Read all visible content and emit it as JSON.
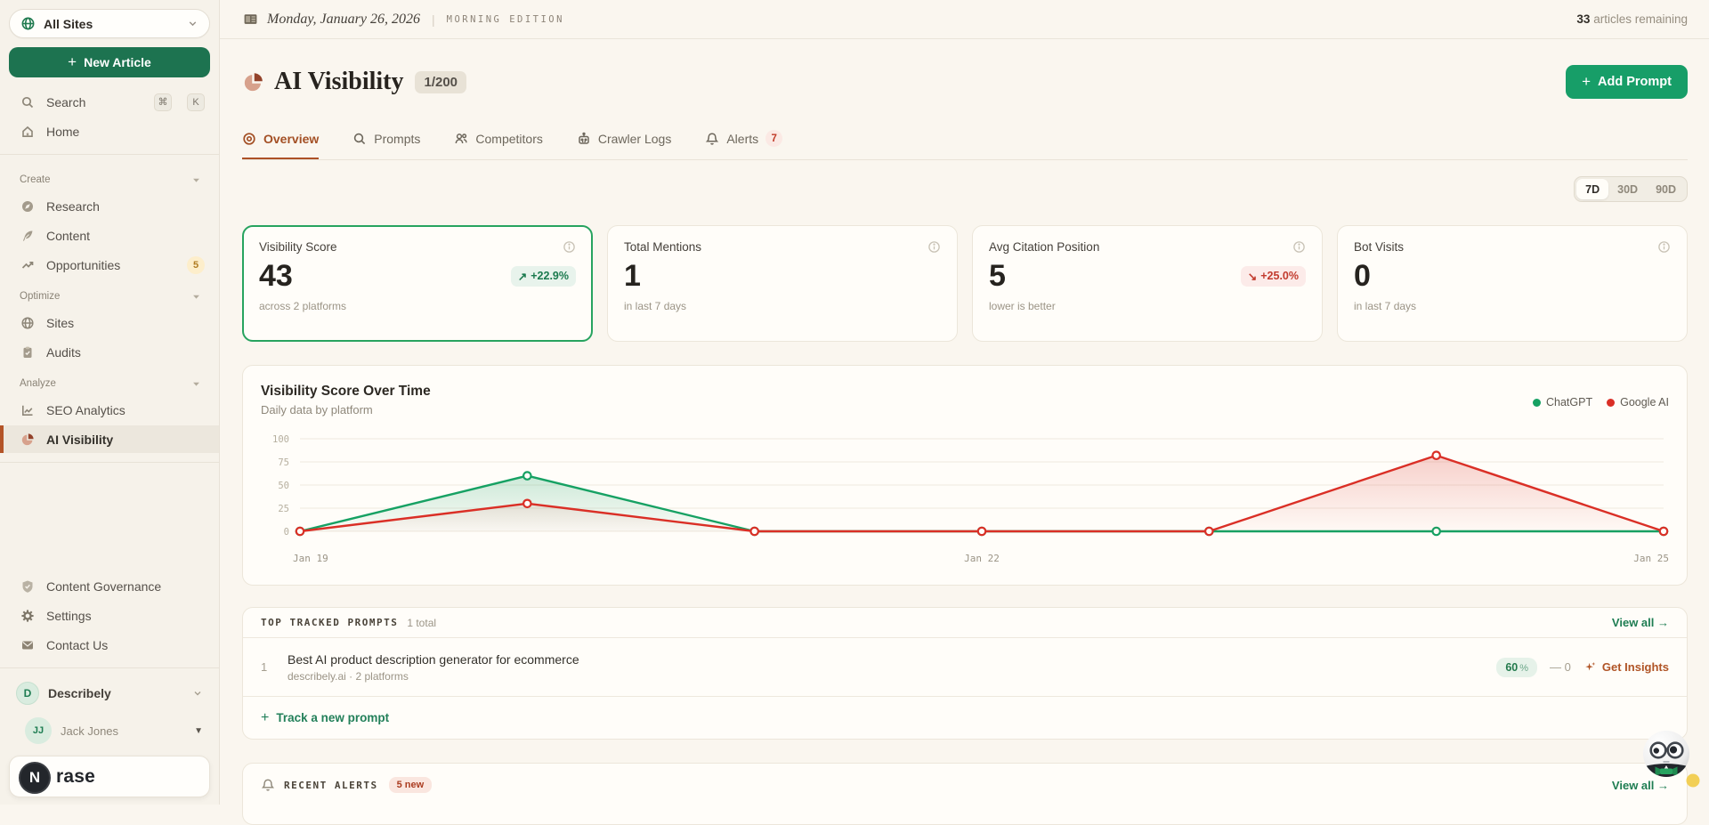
{
  "sidebar": {
    "site_selector": {
      "label": "All Sites"
    },
    "new_article_label": "New Article",
    "search": {
      "label": "Search",
      "shortcut_keys": [
        "⌘",
        "K"
      ]
    },
    "home_label": "Home",
    "sections": [
      {
        "label": "Create",
        "items": [
          {
            "label": "Research"
          },
          {
            "label": "Content"
          },
          {
            "label": "Opportunities",
            "badge": "5"
          }
        ]
      },
      {
        "label": "Optimize",
        "items": [
          {
            "label": "Sites"
          },
          {
            "label": "Audits"
          }
        ]
      },
      {
        "label": "Analyze",
        "items": [
          {
            "label": "SEO Analytics"
          },
          {
            "label": "AI Visibility"
          }
        ]
      }
    ],
    "footer_items": [
      {
        "label": "Content Governance"
      },
      {
        "label": "Settings"
      },
      {
        "label": "Contact Us"
      }
    ],
    "workspace": {
      "initial": "D",
      "name": "Describely"
    },
    "user": {
      "initials": "JJ",
      "name": "Jack Jones"
    },
    "brand": {
      "initial": "N",
      "text": "rase"
    }
  },
  "topbar": {
    "date": "Monday, January 26, 2026",
    "edition": "MORNING EDITION",
    "articles_count": "33",
    "articles_label": "articles remaining"
  },
  "header": {
    "title": "AI Visibility",
    "quota": "1/200",
    "add_prompt_label": "Add Prompt"
  },
  "tabs": [
    {
      "label": "Overview"
    },
    {
      "label": "Prompts"
    },
    {
      "label": "Competitors"
    },
    {
      "label": "Crawler Logs"
    },
    {
      "label": "Alerts",
      "badge": "7"
    }
  ],
  "time_range": {
    "options": [
      "7D",
      "30D",
      "90D"
    ],
    "selected": "7D"
  },
  "stat_cards": [
    {
      "label": "Visibility Score",
      "value": "43",
      "delta_arrow": "↗",
      "delta": "+22.9%",
      "subtext": "across 2 platforms"
    },
    {
      "label": "Total Mentions",
      "value": "1",
      "subtext": "in last 7 days"
    },
    {
      "label": "Avg Citation Position",
      "value": "5",
      "delta_arrow": "↘",
      "delta": "+25.0%",
      "subtext": "lower is better"
    },
    {
      "label": "Bot Visits",
      "value": "0",
      "subtext": "in last 7 days"
    }
  ],
  "chart_data": {
    "type": "line",
    "title": "Visibility Score Over Time",
    "subtitle": "Daily data by platform",
    "x": [
      "Jan 19",
      "Jan 20",
      "Jan 21",
      "Jan 22",
      "Jan 23",
      "Jan 24",
      "Jan 25"
    ],
    "x_tick_labels": [
      "Jan 19",
      "Jan 22",
      "Jan 25"
    ],
    "yticks": [
      0,
      25,
      50,
      75,
      100
    ],
    "ylim": [
      0,
      100
    ],
    "grid": true,
    "legend_position": "top-right",
    "series": [
      {
        "name": "ChatGPT",
        "color": "#16a163",
        "values": [
          0,
          60,
          0,
          0,
          0,
          0,
          0
        ]
      },
      {
        "name": "Google AI",
        "color": "#da2f26",
        "values": [
          0,
          30,
          0,
          0,
          0,
          82,
          0
        ]
      }
    ]
  },
  "prompts": {
    "heading": "TOP TRACKED PROMPTS",
    "total": "1 total",
    "view_all": "View all →",
    "rows": [
      {
        "rank": "1",
        "title": "Best AI product description generator for ecommerce",
        "meta": "describely.ai · 2 platforms",
        "score_value": "60",
        "score_unit": "%",
        "trend": "— 0",
        "action": "Get Insights"
      }
    ],
    "track_new": "Track a new prompt"
  },
  "alerts": {
    "heading": "RECENT ALERTS",
    "badge": "5 new",
    "view_all": "View all →"
  },
  "colors": {
    "background": "#faf6ef",
    "sidebar_background": "#f6f2ea",
    "card_background": "#fffdf9",
    "accent_rust": "#ad5127",
    "deep_green_button": "#1d7350",
    "bright_green_button": "#179e68",
    "green_link": "#1e7d52",
    "positive_badge_text": "#1b7a4e",
    "negative_badge_text": "#c23b2e",
    "highlight_card_border": "#27a35f",
    "chart_chatgpt": "#16a163",
    "chart_google_ai": "#da2f26"
  }
}
